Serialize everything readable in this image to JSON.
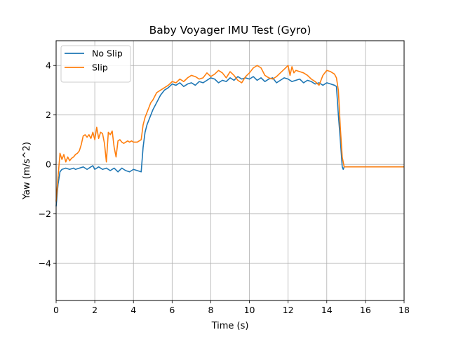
{
  "chart_data": {
    "type": "line",
    "title": "Baby Voyager IMU Test (Gyro)",
    "xlabel": "Time (s)",
    "ylabel": "Yaw (m/s^2)",
    "xlim": [
      0,
      18
    ],
    "ylim": [
      -5.5,
      5.0
    ],
    "xticks": [
      0,
      2,
      4,
      6,
      8,
      10,
      12,
      14,
      16,
      18
    ],
    "yticks": [
      -4,
      -2,
      0,
      2,
      4
    ],
    "grid": true,
    "legend_position": "top-left",
    "series": [
      {
        "name": "No Slip",
        "color": "#1f77b4",
        "x": [
          0,
          0.1,
          0.2,
          0.3,
          0.5,
          0.7,
          0.9,
          1.0,
          1.2,
          1.4,
          1.6,
          1.8,
          1.9,
          2.0,
          2.2,
          2.4,
          2.6,
          2.8,
          3.0,
          3.2,
          3.4,
          3.5,
          3.6,
          3.8,
          4.0,
          4.2,
          4.4,
          4.5,
          4.6,
          4.7,
          4.8,
          4.9,
          5.0,
          5.2,
          5.4,
          5.6,
          5.8,
          6.0,
          6.2,
          6.4,
          6.6,
          6.8,
          7.0,
          7.2,
          7.4,
          7.6,
          7.8,
          8.0,
          8.2,
          8.4,
          8.6,
          8.8,
          9.0,
          9.2,
          9.4,
          9.6,
          9.8,
          10.0,
          10.2,
          10.4,
          10.6,
          10.8,
          11.0,
          11.2,
          11.4,
          11.6,
          11.8,
          12.0,
          12.2,
          12.4,
          12.6,
          12.8,
          13.0,
          13.2,
          13.4,
          13.6,
          13.8,
          14.0,
          14.2,
          14.4,
          14.5,
          14.6,
          14.7,
          14.8,
          14.85,
          14.9,
          15.0,
          15.2,
          15.5,
          16.0,
          16.5,
          17.0,
          17.5,
          18.0
        ],
        "y": [
          -1.7,
          -0.8,
          -0.3,
          -0.2,
          -0.15,
          -0.2,
          -0.15,
          -0.2,
          -0.15,
          -0.1,
          -0.2,
          -0.1,
          -0.05,
          -0.2,
          -0.1,
          -0.2,
          -0.15,
          -0.25,
          -0.15,
          -0.3,
          -0.15,
          -0.2,
          -0.25,
          -0.3,
          -0.2,
          -0.25,
          -0.3,
          0.7,
          1.3,
          1.6,
          1.8,
          2.0,
          2.2,
          2.5,
          2.8,
          3.0,
          3.1,
          3.25,
          3.2,
          3.3,
          3.15,
          3.25,
          3.3,
          3.2,
          3.35,
          3.3,
          3.4,
          3.5,
          3.45,
          3.3,
          3.4,
          3.35,
          3.5,
          3.4,
          3.55,
          3.45,
          3.5,
          3.45,
          3.55,
          3.4,
          3.5,
          3.35,
          3.45,
          3.5,
          3.3,
          3.4,
          3.5,
          3.45,
          3.35,
          3.4,
          3.45,
          3.3,
          3.4,
          3.35,
          3.25,
          3.3,
          3.2,
          3.3,
          3.25,
          3.2,
          3.15,
          2.0,
          1.0,
          -0.1,
          -0.2,
          -0.1,
          -0.1,
          -0.1,
          -0.1,
          -0.1,
          -0.1,
          -0.1,
          -0.1,
          -0.1
        ]
      },
      {
        "name": "Slip",
        "color": "#ff7f0e",
        "x": [
          0,
          0.1,
          0.2,
          0.3,
          0.4,
          0.5,
          0.6,
          0.7,
          0.8,
          0.9,
          1.0,
          1.1,
          1.2,
          1.3,
          1.4,
          1.5,
          1.6,
          1.7,
          1.8,
          1.9,
          2.0,
          2.1,
          2.2,
          2.3,
          2.4,
          2.5,
          2.6,
          2.7,
          2.8,
          2.9,
          3.0,
          3.1,
          3.2,
          3.3,
          3.4,
          3.5,
          3.6,
          3.7,
          3.8,
          3.9,
          4.0,
          4.2,
          4.4,
          4.5,
          4.6,
          4.7,
          4.8,
          4.9,
          5.0,
          5.2,
          5.4,
          5.6,
          5.8,
          6.0,
          6.2,
          6.4,
          6.6,
          6.8,
          7.0,
          7.2,
          7.4,
          7.6,
          7.8,
          8.0,
          8.2,
          8.4,
          8.6,
          8.8,
          9.0,
          9.2,
          9.4,
          9.6,
          9.8,
          10.0,
          10.2,
          10.4,
          10.6,
          10.8,
          11.0,
          11.2,
          11.4,
          11.6,
          11.8,
          12.0,
          12.1,
          12.2,
          12.3,
          12.4,
          12.6,
          12.8,
          13.0,
          13.2,
          13.4,
          13.6,
          13.8,
          14.0,
          14.2,
          14.4,
          14.5,
          14.6,
          14.7,
          14.8,
          14.9,
          15.0,
          15.5,
          16.0,
          16.5,
          17.0,
          17.5,
          18.0
        ],
        "y": [
          -1.5,
          -0.5,
          0.45,
          0.2,
          0.4,
          0.1,
          0.3,
          0.15,
          0.25,
          0.3,
          0.4,
          0.45,
          0.55,
          0.8,
          1.15,
          1.2,
          1.1,
          1.2,
          1.05,
          1.3,
          1.0,
          1.5,
          1.05,
          1.3,
          1.25,
          0.85,
          0.1,
          1.3,
          1.2,
          1.35,
          0.7,
          0.3,
          0.95,
          1.0,
          0.9,
          0.85,
          0.9,
          0.95,
          0.9,
          0.95,
          0.9,
          0.9,
          1.0,
          1.6,
          1.9,
          2.1,
          2.3,
          2.5,
          2.6,
          2.9,
          3.0,
          3.1,
          3.2,
          3.35,
          3.3,
          3.45,
          3.35,
          3.5,
          3.6,
          3.55,
          3.45,
          3.5,
          3.7,
          3.55,
          3.65,
          3.8,
          3.7,
          3.5,
          3.75,
          3.6,
          3.4,
          3.3,
          3.55,
          3.7,
          3.9,
          4.0,
          3.9,
          3.6,
          3.5,
          3.45,
          3.55,
          3.7,
          3.85,
          4.0,
          3.6,
          3.95,
          3.7,
          3.8,
          3.75,
          3.7,
          3.6,
          3.45,
          3.35,
          3.2,
          3.6,
          3.8,
          3.75,
          3.65,
          3.5,
          3.0,
          1.5,
          0.3,
          -0.1,
          -0.1,
          -0.1,
          -0.1,
          -0.1,
          -0.1,
          -0.1,
          -0.1
        ]
      }
    ]
  }
}
